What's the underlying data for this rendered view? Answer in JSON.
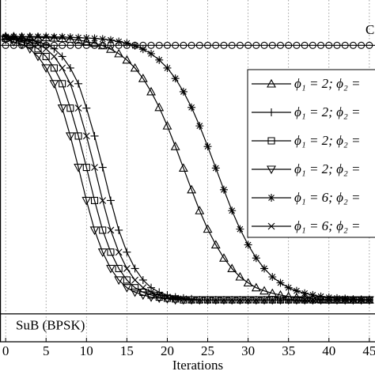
{
  "chart_data": {
    "type": "line",
    "xlabel": "Iterations",
    "x": [
      0,
      1,
      2,
      3,
      4,
      5,
      6,
      7,
      8,
      9,
      10,
      11,
      12,
      13,
      14,
      15,
      16,
      17,
      18,
      19,
      20,
      21,
      22,
      23,
      24,
      25,
      26,
      27,
      28,
      29,
      30,
      31,
      32,
      33,
      34,
      35,
      36,
      37,
      38,
      39,
      40,
      41,
      42,
      43,
      44,
      45
    ],
    "xlim": [
      -0.7,
      45.7
    ],
    "xticks": [
      0,
      5,
      10,
      15,
      20,
      25,
      30,
      35,
      40,
      45
    ],
    "ylim": [
      0.5,
      10.3
    ],
    "grid": true,
    "series": [
      {
        "name": "ϕ₁ = 2; ϕ₂ =",
        "color": "#000000",
        "marker": "triangle-up",
        "values": [
          9.25,
          9.25,
          9.24,
          9.24,
          9.23,
          9.22,
          9.21,
          9.2,
          9.18,
          9.15,
          9.11,
          9.06,
          8.99,
          8.89,
          8.76,
          8.58,
          8.35,
          8.05,
          7.67,
          7.22,
          6.69,
          6.1,
          5.48,
          4.86,
          4.26,
          3.73,
          3.28,
          2.9,
          2.6,
          2.36,
          2.19,
          2.05,
          1.96,
          1.89,
          1.84,
          1.8,
          1.77,
          1.75,
          1.74,
          1.72,
          1.7,
          1.7,
          1.7,
          1.7,
          1.7,
          1.7
        ]
      },
      {
        "name": "ϕ₁ = 2; ϕ₂ =",
        "color": "#000000",
        "marker": "plus",
        "values": [
          9.25,
          9.22,
          9.2,
          9.17,
          9.1,
          9.03,
          8.9,
          8.68,
          8.35,
          7.9,
          7.2,
          6.4,
          5.5,
          4.55,
          3.7,
          3.07,
          2.6,
          2.27,
          2.05,
          1.92,
          1.84,
          1.78,
          1.75,
          1.73,
          1.7,
          1.7,
          1.7,
          1.7,
          1.7,
          1.7,
          1.7,
          1.7,
          1.7,
          1.7,
          1.7,
          1.7,
          1.7,
          1.7,
          1.7,
          1.7,
          1.7,
          1.7,
          1.7,
          1.7,
          1.7,
          1.7
        ]
      },
      {
        "name": "ϕ₁ = 2; ϕ₂ =",
        "color": "#000000",
        "marker": "square",
        "values": [
          9.2,
          9.17,
          9.1,
          9.03,
          8.9,
          8.68,
          8.35,
          7.9,
          7.2,
          6.4,
          5.5,
          4.55,
          3.7,
          3.07,
          2.6,
          2.27,
          2.05,
          1.92,
          1.84,
          1.78,
          1.75,
          1.73,
          1.7,
          1.7,
          1.7,
          1.7,
          1.7,
          1.7,
          1.7,
          1.7,
          1.7,
          1.7,
          1.7,
          1.7,
          1.7,
          1.7,
          1.7,
          1.7,
          1.7,
          1.7,
          1.7,
          1.7,
          1.7,
          1.7,
          1.7,
          1.7
        ]
      },
      {
        "name": "ϕ₁ = 2; ϕ₂ =",
        "color": "#000000",
        "marker": "triangle-down",
        "values": [
          9.17,
          9.1,
          9.03,
          8.9,
          8.68,
          8.35,
          7.9,
          7.2,
          6.4,
          5.5,
          4.55,
          3.7,
          3.07,
          2.6,
          2.27,
          2.05,
          1.92,
          1.84,
          1.78,
          1.75,
          1.73,
          1.7,
          1.7,
          1.7,
          1.7,
          1.7,
          1.7,
          1.7,
          1.7,
          1.7,
          1.7,
          1.7,
          1.7,
          1.7,
          1.7,
          1.7,
          1.7,
          1.7,
          1.7,
          1.7,
          1.7,
          1.7,
          1.7,
          1.7,
          1.7,
          1.7
        ]
      },
      {
        "name": "ϕ₁ = 6; ϕ₂ =",
        "color": "#000000",
        "marker": "star",
        "values": [
          9.25,
          9.25,
          9.25,
          9.25,
          9.25,
          9.25,
          9.24,
          9.24,
          9.23,
          9.22,
          9.21,
          9.2,
          9.18,
          9.15,
          9.11,
          9.06,
          8.99,
          8.89,
          8.76,
          8.58,
          8.35,
          8.05,
          7.67,
          7.22,
          6.69,
          6.1,
          5.48,
          4.86,
          4.26,
          3.73,
          3.28,
          2.9,
          2.6,
          2.36,
          2.19,
          2.05,
          1.96,
          1.89,
          1.84,
          1.8,
          1.77,
          1.75,
          1.74,
          1.72,
          1.71,
          1.7
        ]
      },
      {
        "name": "ϕ₁ = 6; ϕ₂ =",
        "color": "#000000",
        "marker": "cross",
        "values": [
          9.22,
          9.2,
          9.17,
          9.1,
          9.03,
          8.9,
          8.68,
          8.35,
          7.9,
          7.2,
          6.4,
          5.5,
          4.55,
          3.7,
          3.07,
          2.6,
          2.27,
          2.05,
          1.92,
          1.84,
          1.78,
          1.75,
          1.73,
          1.7,
          1.7,
          1.7,
          1.7,
          1.7,
          1.7,
          1.7,
          1.7,
          1.7,
          1.7,
          1.7,
          1.7,
          1.7,
          1.7,
          1.7,
          1.7,
          1.7,
          1.7,
          1.7,
          1.7,
          1.7,
          1.7,
          1.7
        ]
      }
    ],
    "reference_lines": [
      {
        "label": "C",
        "value": 9.0,
        "marker": "circle"
      },
      {
        "label": "SuB (BPSK)",
        "value": 1.3
      }
    ]
  }
}
